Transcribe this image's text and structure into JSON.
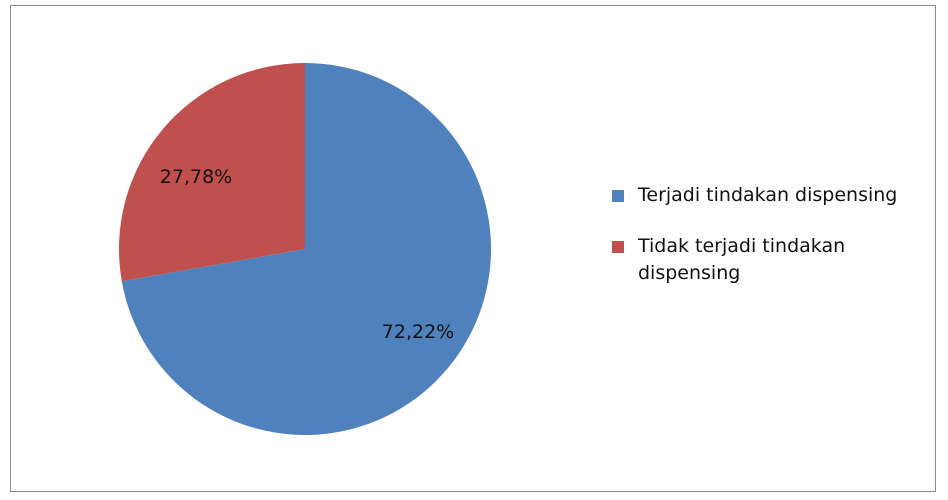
{
  "chart_data": {
    "type": "pie",
    "title": "",
    "slices": [
      {
        "label": "Terjadi tindakan  dispensing",
        "value": 72.22,
        "display": "72,22%",
        "color": "#4f81bd"
      },
      {
        "label": "Tidak terjadi tindakan dispensing",
        "value": 27.78,
        "display": "27,78%",
        "color": "#c0504d"
      }
    ],
    "start_angle_deg": 0,
    "direction": "clockwise",
    "legend_position": "right"
  }
}
